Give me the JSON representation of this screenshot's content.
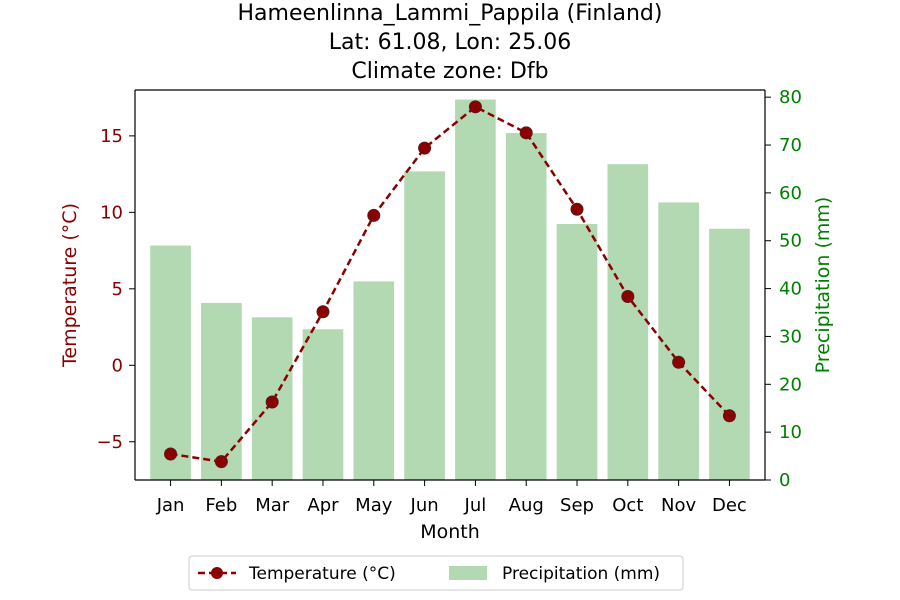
{
  "chart_data": {
    "type": "bar+line",
    "title": [
      "Hameenlinna_Lammi_Pappila (Finland)",
      "Lat: 61.08, Lon: 25.06",
      "Climate zone: Dfb"
    ],
    "xlabel": "Month",
    "categories": [
      "Jan",
      "Feb",
      "Mar",
      "Apr",
      "May",
      "Jun",
      "Jul",
      "Aug",
      "Sep",
      "Oct",
      "Nov",
      "Dec"
    ],
    "temperature": {
      "name": "Temperature (°C)",
      "axis_label": "Temperature (°C)",
      "values": [
        -5.8,
        -6.3,
        -2.4,
        3.5,
        9.8,
        14.2,
        16.9,
        15.2,
        10.2,
        4.5,
        0.2,
        -3.3
      ],
      "ylim": [
        -7.5,
        18
      ],
      "ticks": [
        -5,
        0,
        5,
        10,
        15
      ],
      "color": "#8b0000",
      "style": "dashed line with circle markers"
    },
    "precipitation": {
      "name": "Precipitation (mm)",
      "axis_label": "Precipitation (mm)",
      "values": [
        49,
        37,
        34,
        31.5,
        41.5,
        64.5,
        79.5,
        72.5,
        53.5,
        66,
        58,
        52.5
      ],
      "ylim": [
        0,
        81.5
      ],
      "ticks": [
        0,
        10,
        20,
        30,
        40,
        50,
        60,
        70,
        80
      ],
      "color": "#b2d9b2",
      "tick_color": "#008000"
    },
    "legend_position": "bottom-center"
  }
}
